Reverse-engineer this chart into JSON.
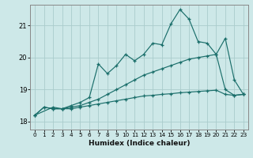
{
  "xlabel": "Humidex (Indice chaleur)",
  "bg_color": "#cde8e8",
  "line_color": "#1a6e6a",
  "grid_color": "#aacccc",
  "xlim": [
    -0.5,
    23.5
  ],
  "ylim": [
    17.75,
    21.65
  ],
  "yticks": [
    18,
    19,
    20,
    21
  ],
  "xticks": [
    0,
    1,
    2,
    3,
    4,
    5,
    6,
    7,
    8,
    9,
    10,
    11,
    12,
    13,
    14,
    15,
    16,
    17,
    18,
    19,
    20,
    21,
    22,
    23
  ],
  "line1_x": [
    0,
    1,
    2,
    3,
    4,
    5,
    6,
    7,
    8,
    9,
    10,
    11,
    12,
    13,
    14,
    15,
    16,
    17,
    18,
    19,
    20,
    21,
    22,
    23
  ],
  "line1_y": [
    18.2,
    18.45,
    18.4,
    18.4,
    18.4,
    18.45,
    18.5,
    18.55,
    18.6,
    18.65,
    18.7,
    18.75,
    18.8,
    18.82,
    18.85,
    18.87,
    18.9,
    18.92,
    18.94,
    18.96,
    18.98,
    18.85,
    18.82,
    18.85
  ],
  "line2_x": [
    0,
    1,
    2,
    3,
    4,
    5,
    6,
    7,
    8,
    9,
    10,
    11,
    12,
    13,
    14,
    15,
    16,
    17,
    18,
    19,
    20,
    21,
    22,
    23
  ],
  "line2_y": [
    18.2,
    18.45,
    18.4,
    18.4,
    18.45,
    18.5,
    18.6,
    18.7,
    18.85,
    19.0,
    19.15,
    19.3,
    19.45,
    19.55,
    19.65,
    19.75,
    19.85,
    19.95,
    20.0,
    20.05,
    20.1,
    19.0,
    18.82,
    18.85
  ],
  "line3_x": [
    0,
    2,
    3,
    4,
    5,
    6,
    7,
    8,
    9,
    10,
    11,
    12,
    13,
    14,
    15,
    16,
    17,
    18,
    19,
    20,
    21,
    22,
    23
  ],
  "line3_y": [
    18.2,
    18.45,
    18.4,
    18.5,
    18.6,
    18.75,
    19.8,
    19.5,
    19.75,
    20.1,
    19.9,
    20.1,
    20.45,
    20.4,
    21.05,
    21.5,
    21.2,
    20.5,
    20.45,
    20.1,
    20.6,
    19.3,
    18.85
  ]
}
